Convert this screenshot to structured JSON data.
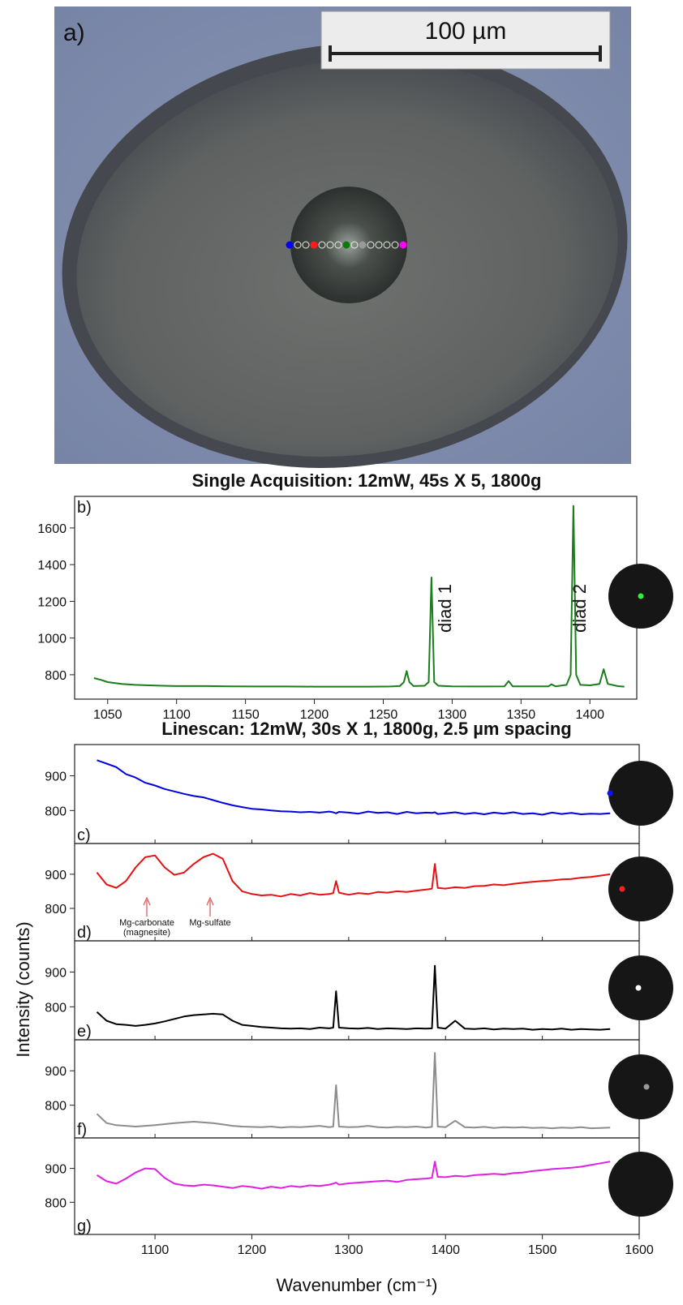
{
  "image": {
    "label": "a)",
    "scale_bar": "100 µm"
  },
  "chart_data": [
    {
      "type": "line",
      "title": "Single Acquisition: 12mW, 45s X 5,  1800g",
      "label": "b)",
      "annotations": [
        "diad 1",
        "diad 2"
      ],
      "x": [
        1040,
        1045,
        1050,
        1060,
        1070,
        1080,
        1090,
        1100,
        1120,
        1140,
        1160,
        1180,
        1200,
        1220,
        1240,
        1255,
        1262,
        1265,
        1267,
        1269,
        1272,
        1280,
        1283,
        1285,
        1287,
        1290,
        1300,
        1320,
        1338,
        1341,
        1344,
        1360,
        1370,
        1372,
        1375,
        1383,
        1386,
        1388,
        1390,
        1393,
        1400,
        1407,
        1410,
        1413,
        1420,
        1425
      ],
      "values": [
        782,
        772,
        760,
        750,
        745,
        742,
        740,
        738,
        738,
        737,
        736,
        736,
        735,
        735,
        735,
        736,
        738,
        760,
        820,
        760,
        738,
        740,
        760,
        1330,
        760,
        740,
        737,
        736,
        737,
        765,
        737,
        737,
        737,
        748,
        737,
        745,
        800,
        1720,
        800,
        745,
        742,
        750,
        830,
        750,
        738,
        735
      ],
      "color": "#1b7d1b",
      "xlim": [
        1026,
        1434
      ],
      "xticks": [
        1050,
        1100,
        1150,
        1200,
        1250,
        1300,
        1350,
        1400
      ],
      "ylim": [
        667,
        1772
      ],
      "yticks": [
        800,
        1000,
        1200,
        1400,
        1600
      ]
    },
    {
      "type": "line",
      "title": "Linescan: 12mW, 30s X 1,  1800g, 2.5 µm spacing",
      "label": "c)",
      "x": [
        1040,
        1050,
        1060,
        1070,
        1080,
        1090,
        1100,
        1110,
        1120,
        1130,
        1140,
        1150,
        1160,
        1170,
        1180,
        1190,
        1200,
        1210,
        1220,
        1230,
        1240,
        1250,
        1260,
        1270,
        1280,
        1284,
        1287,
        1290,
        1300,
        1310,
        1320,
        1330,
        1340,
        1350,
        1360,
        1370,
        1380,
        1386,
        1389,
        1392,
        1400,
        1410,
        1420,
        1430,
        1440,
        1450,
        1460,
        1470,
        1480,
        1490,
        1500,
        1510,
        1520,
        1530,
        1540,
        1550,
        1560,
        1570
      ],
      "values": [
        945,
        935,
        925,
        905,
        895,
        880,
        872,
        862,
        855,
        848,
        842,
        838,
        830,
        822,
        815,
        810,
        805,
        803,
        800,
        798,
        797,
        795,
        796,
        794,
        797,
        795,
        792,
        796,
        794,
        791,
        797,
        793,
        795,
        790,
        796,
        792,
        794,
        793,
        795,
        790,
        792,
        795,
        790,
        793,
        789,
        794,
        791,
        795,
        790,
        792,
        788,
        794,
        790,
        793,
        789,
        791,
        790,
        792
      ],
      "color": "#0000e0",
      "xlim": [
        1017,
        1600
      ],
      "ylim": [
        705,
        990
      ],
      "yticks": [
        800,
        900
      ]
    },
    {
      "type": "line",
      "label": "d)",
      "annotations": [
        "Mg-carbonate",
        "(magnesite)",
        "Mg-sulfate"
      ],
      "x": [
        1040,
        1050,
        1060,
        1070,
        1080,
        1090,
        1100,
        1110,
        1120,
        1130,
        1140,
        1150,
        1160,
        1170,
        1180,
        1190,
        1200,
        1210,
        1220,
        1230,
        1240,
        1250,
        1260,
        1270,
        1280,
        1284,
        1287,
        1290,
        1300,
        1310,
        1320,
        1330,
        1340,
        1350,
        1360,
        1370,
        1380,
        1386,
        1389,
        1392,
        1400,
        1410,
        1420,
        1430,
        1440,
        1450,
        1460,
        1470,
        1480,
        1490,
        1500,
        1510,
        1520,
        1530,
        1540,
        1550,
        1560,
        1570
      ],
      "values": [
        905,
        870,
        860,
        880,
        920,
        950,
        955,
        920,
        898,
        905,
        930,
        950,
        960,
        945,
        880,
        850,
        842,
        838,
        840,
        835,
        842,
        838,
        845,
        840,
        842,
        845,
        880,
        846,
        840,
        845,
        842,
        848,
        846,
        850,
        848,
        852,
        855,
        858,
        930,
        860,
        858,
        862,
        860,
        865,
        866,
        870,
        868,
        872,
        875,
        878,
        880,
        882,
        885,
        886,
        890,
        892,
        896,
        900
      ],
      "color": "#e81010",
      "xlim": [
        1017,
        1600
      ],
      "ylim": [
        705,
        990
      ],
      "yticks": [
        800,
        900
      ]
    },
    {
      "type": "line",
      "label": "e)",
      "ylabel": "Intensity (counts)",
      "x": [
        1040,
        1050,
        1060,
        1070,
        1080,
        1090,
        1100,
        1110,
        1120,
        1130,
        1140,
        1150,
        1160,
        1170,
        1180,
        1190,
        1200,
        1210,
        1220,
        1230,
        1240,
        1250,
        1260,
        1270,
        1280,
        1284,
        1287,
        1290,
        1300,
        1310,
        1320,
        1330,
        1340,
        1350,
        1360,
        1370,
        1380,
        1386,
        1389,
        1392,
        1400,
        1410,
        1420,
        1430,
        1440,
        1450,
        1460,
        1470,
        1480,
        1490,
        1500,
        1510,
        1520,
        1530,
        1540,
        1550,
        1560,
        1570
      ],
      "values": [
        785,
        760,
        750,
        748,
        745,
        748,
        752,
        758,
        765,
        772,
        776,
        778,
        780,
        778,
        760,
        748,
        745,
        742,
        740,
        738,
        737,
        738,
        736,
        740,
        738,
        740,
        845,
        740,
        738,
        737,
        739,
        736,
        738,
        737,
        736,
        738,
        737,
        738,
        918,
        740,
        737,
        760,
        737,
        736,
        738,
        735,
        737,
        736,
        737,
        734,
        736,
        735,
        737,
        734,
        736,
        735,
        734,
        736
      ],
      "color": "#000000",
      "xlim": [
        1017,
        1600
      ],
      "ylim": [
        705,
        990
      ],
      "yticks": [
        800,
        900
      ]
    },
    {
      "type": "line",
      "label": "f)",
      "x": [
        1040,
        1050,
        1060,
        1070,
        1080,
        1090,
        1100,
        1110,
        1120,
        1130,
        1140,
        1150,
        1160,
        1170,
        1180,
        1190,
        1200,
        1210,
        1220,
        1230,
        1240,
        1250,
        1260,
        1270,
        1280,
        1284,
        1287,
        1290,
        1300,
        1310,
        1320,
        1330,
        1340,
        1350,
        1360,
        1370,
        1380,
        1386,
        1389,
        1392,
        1400,
        1410,
        1420,
        1430,
        1440,
        1450,
        1460,
        1470,
        1480,
        1490,
        1500,
        1510,
        1520,
        1530,
        1540,
        1550,
        1560,
        1570
      ],
      "values": [
        775,
        748,
        742,
        740,
        738,
        740,
        742,
        745,
        748,
        750,
        752,
        750,
        748,
        744,
        740,
        738,
        737,
        736,
        738,
        735,
        737,
        736,
        738,
        740,
        736,
        738,
        858,
        738,
        736,
        737,
        740,
        736,
        735,
        737,
        736,
        738,
        735,
        737,
        952,
        738,
        736,
        755,
        736,
        735,
        737,
        734,
        736,
        735,
        736,
        734,
        735,
        733,
        735,
        734,
        736,
        733,
        734,
        735
      ],
      "color": "#8c8c8c",
      "xlim": [
        1017,
        1600
      ],
      "ylim": [
        705,
        990
      ],
      "yticks": [
        800,
        900
      ]
    },
    {
      "type": "line",
      "label": "g)",
      "xlabel": "Wavenumber (cm⁻¹)",
      "x": [
        1040,
        1050,
        1060,
        1070,
        1080,
        1090,
        1100,
        1110,
        1120,
        1130,
        1140,
        1150,
        1160,
        1170,
        1180,
        1190,
        1200,
        1210,
        1220,
        1230,
        1240,
        1250,
        1260,
        1270,
        1280,
        1284,
        1287,
        1290,
        1300,
        1310,
        1320,
        1330,
        1340,
        1350,
        1360,
        1370,
        1380,
        1386,
        1389,
        1392,
        1400,
        1410,
        1420,
        1430,
        1440,
        1450,
        1460,
        1470,
        1480,
        1490,
        1500,
        1510,
        1520,
        1530,
        1540,
        1550,
        1560,
        1570
      ],
      "values": [
        880,
        862,
        855,
        870,
        888,
        900,
        898,
        872,
        855,
        850,
        848,
        852,
        850,
        846,
        842,
        848,
        845,
        840,
        846,
        842,
        848,
        845,
        850,
        848,
        852,
        855,
        858,
        852,
        856,
        858,
        860,
        862,
        864,
        860,
        866,
        868,
        870,
        872,
        920,
        875,
        874,
        878,
        876,
        880,
        882,
        884,
        882,
        886,
        888,
        892,
        895,
        898,
        900,
        902,
        905,
        910,
        915,
        920
      ],
      "color": "#e020e0",
      "xlim": [
        1017,
        1600
      ],
      "xticks": [
        1100,
        1200,
        1300,
        1400,
        1500,
        1600
      ],
      "ylim": [
        705,
        990
      ],
      "yticks": [
        800,
        900
      ]
    }
  ]
}
